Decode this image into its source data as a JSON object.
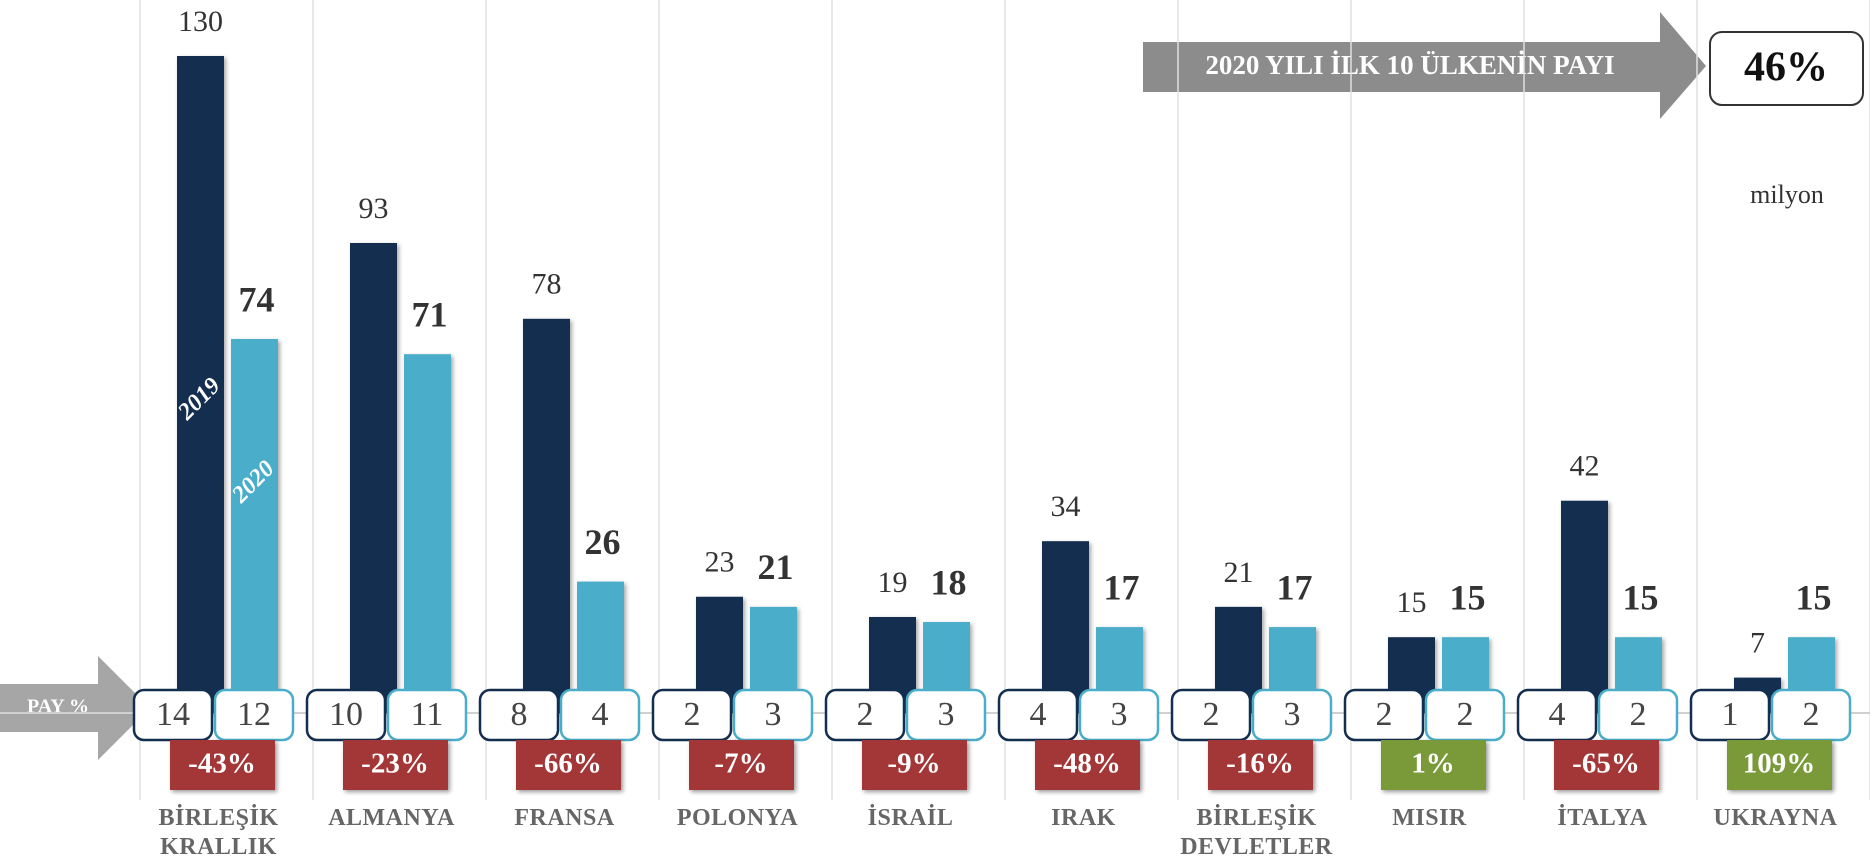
{
  "chart_data": {
    "type": "bar",
    "categories": [
      "BİRLEŞİK KRALLIK",
      "ALMANYA",
      "FRANSA",
      "POLONYA",
      "İSRAİL",
      "IRAK",
      "BİRLEŞİK DEVLETLER",
      "MISIR",
      "İTALYA",
      "UKRAYNA"
    ],
    "series": [
      {
        "name": "2019",
        "color": "#132e4f",
        "values": [
          130,
          93,
          78,
          23,
          19,
          34,
          21,
          15,
          42,
          7
        ],
        "share": [
          14,
          10,
          8,
          2,
          2,
          4,
          2,
          2,
          4,
          1
        ]
      },
      {
        "name": "2020",
        "color": "#4aadc9",
        "values": [
          74,
          71,
          26,
          21,
          18,
          17,
          17,
          15,
          15,
          15
        ],
        "share": [
          12,
          11,
          4,
          3,
          3,
          3,
          3,
          2,
          2,
          2
        ]
      }
    ],
    "change": {
      "values": [
        -43,
        -23,
        -66,
        -7,
        -9,
        -48,
        -16,
        1,
        -65,
        109
      ],
      "value_labels": [
        "-43%",
        "-23%",
        "-66%",
        "-7%",
        "-9%",
        "-48%",
        "-16%",
        "1%",
        "-65%",
        "109%"
      ],
      "negative_color": "#a33636",
      "positive_color": "#7a9a3a"
    },
    "share_label": "PAY %",
    "unit": "milyon",
    "top_share": {
      "label": "2020 YILI İLK 10 ÜLKENİN PAYI",
      "value": 46,
      "value_label": "46%"
    }
  }
}
